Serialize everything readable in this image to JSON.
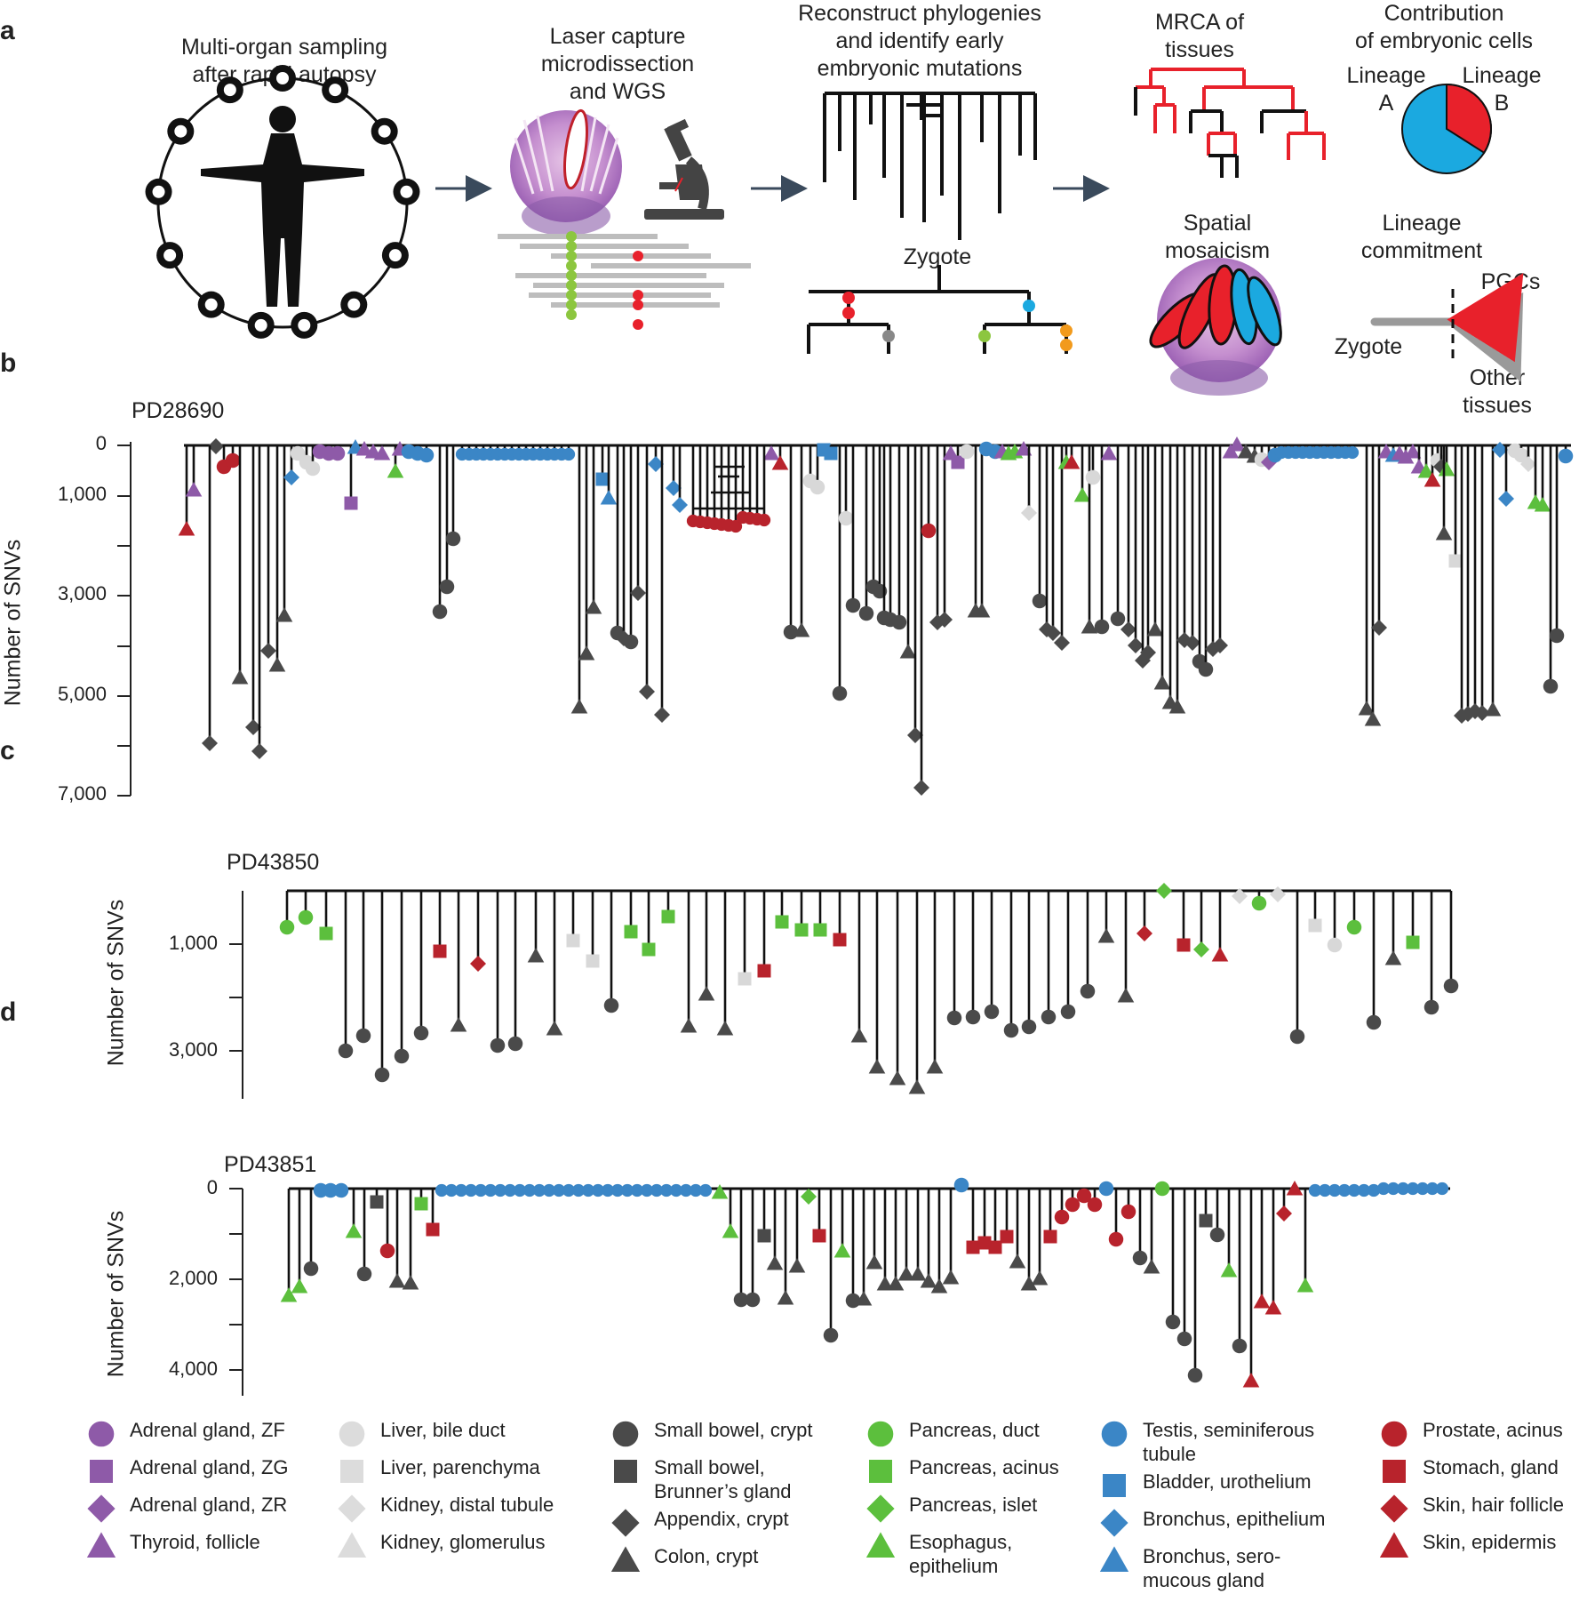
{
  "panel_a": {
    "letter": "a",
    "stages": {
      "sampling": "Multi-organ sampling\nafter rapid autopsy",
      "lcm": "Laser capture\nmicrodissection\nand WGS",
      "phylogeny": "Reconstruct phylogenies\nand identify early\nembryonic mutations",
      "zygote": "Zygote",
      "mrca": "MRCA of\ntissues",
      "contribution": "Contribution\nof embryonic cells",
      "lineage_a": "Lineage\nA",
      "lineage_b": "Lineage\nB",
      "spatial": "Spatial\nmosaicism",
      "commitment": "Lineage\ncommitment",
      "pgcs": "PGCs",
      "commit_zygote": "Zygote",
      "other_tissues": "Other\ntissues"
    },
    "pie": {
      "lineage_a_fraction": 0.66,
      "lineage_b_fraction": 0.34,
      "colors": {
        "a": "#1ba9e0",
        "b": "#e8212b"
      }
    }
  },
  "panel_b": {
    "letter": "b",
    "sample": "PD28690",
    "ylabel": "Number of SNVs",
    "ticks": [
      "0",
      "1,000",
      "3,000",
      "5,000",
      "7,000"
    ]
  },
  "panel_c": {
    "letter": "c",
    "sample": "PD43850",
    "ylabel": "Number of SNVs",
    "ticks": [
      "1,000",
      "3,000"
    ]
  },
  "panel_d": {
    "letter": "d",
    "sample": "PD43851",
    "ylabel": "Number of SNVs",
    "ticks": [
      "0",
      "2,000",
      "4,000"
    ]
  },
  "colors": {
    "adrenal": "#8e5aa8",
    "liver_kidney": "#d8d8d8",
    "gut": "#4a4a4a",
    "pancreas": "#5cbf3d",
    "testis_bronchus": "#3b86c6",
    "prostate_skin": "#b8232c",
    "line": "#111111"
  },
  "legend": [
    [
      {
        "label": "Adrenal gland, ZF",
        "shape": "circle",
        "color": "#8e5aa8"
      },
      {
        "label": "Adrenal gland, ZG",
        "shape": "square",
        "color": "#8e5aa8"
      },
      {
        "label": "Adrenal gland, ZR",
        "shape": "diamond",
        "color": "#8e5aa8"
      },
      {
        "label": "Thyroid, follicle",
        "shape": "triangle",
        "color": "#8e5aa8"
      }
    ],
    [
      {
        "label": "Liver, bile duct",
        "shape": "circle",
        "color": "#dcdcdc"
      },
      {
        "label": "Liver, parenchyma",
        "shape": "square",
        "color": "#dcdcdc"
      },
      {
        "label": "Kidney, distal tubule",
        "shape": "diamond",
        "color": "#dcdcdc"
      },
      {
        "label": "Kidney, glomerulus",
        "shape": "triangle",
        "color": "#dcdcdc"
      }
    ],
    [
      {
        "label": "Small bowel, crypt",
        "shape": "circle",
        "color": "#4a4a4a"
      },
      {
        "label": "Small bowel,\nBrunner’s gland",
        "shape": "square",
        "color": "#4a4a4a"
      },
      {
        "label": "Appendix, crypt",
        "shape": "diamond",
        "color": "#4a4a4a"
      },
      {
        "label": "Colon, crypt",
        "shape": "triangle",
        "color": "#4a4a4a"
      }
    ],
    [
      {
        "label": "Pancreas, duct",
        "shape": "circle",
        "color": "#5cbf3d"
      },
      {
        "label": "Pancreas, acinus",
        "shape": "square",
        "color": "#5cbf3d"
      },
      {
        "label": "Pancreas, islet",
        "shape": "diamond",
        "color": "#5cbf3d"
      },
      {
        "label": "Esophagus,\nepithelium",
        "shape": "triangle",
        "color": "#5cbf3d"
      }
    ],
    [
      {
        "label": "Testis, seminiferous\ntubule",
        "shape": "circle",
        "color": "#3b86c6"
      },
      {
        "label": "Bladder, urothelium",
        "shape": "square",
        "color": "#3b86c6"
      },
      {
        "label": "Bronchus, epithelium",
        "shape": "diamond",
        "color": "#3b86c6"
      },
      {
        "label": "Bronchus, sero-\nmucous gland",
        "shape": "triangle",
        "color": "#3b86c6"
      }
    ],
    [
      {
        "label": "Prostate, acinus",
        "shape": "circle",
        "color": "#b8232c"
      },
      {
        "label": "Stomach, gland",
        "shape": "square",
        "color": "#b8232c"
      },
      {
        "label": "Skin, hair follicle",
        "shape": "diamond",
        "color": "#b8232c"
      },
      {
        "label": "Skin, epidermis",
        "shape": "triangle",
        "color": "#b8232c"
      }
    ]
  ]
}
